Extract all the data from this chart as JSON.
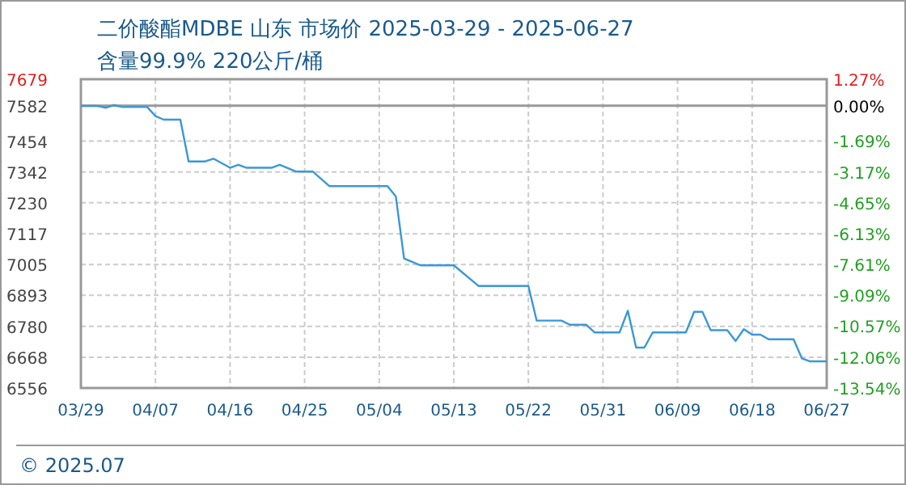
{
  "chart_data": {
    "type": "line",
    "title": "二价酸酯MDBE 山东 市场价 2025-03-29 - 2025-06-27",
    "subtitle": "含量99.9% 220公斤/桶",
    "annotations": [
      "© 2025.07"
    ],
    "x": [
      "2025-03-29",
      "2025-03-31",
      "2025-04-01",
      "2025-04-02",
      "2025-04-03",
      "2025-04-06",
      "2025-04-07",
      "2025-04-08",
      "2025-04-10",
      "2025-04-11",
      "2025-04-13",
      "2025-04-14",
      "2025-04-16",
      "2025-04-17",
      "2025-04-18",
      "2025-04-21",
      "2025-04-22",
      "2025-04-24",
      "2025-04-26",
      "2025-04-28",
      "2025-05-05",
      "2025-05-06",
      "2025-05-07",
      "2025-05-09",
      "2025-05-13",
      "2025-05-16",
      "2025-05-22",
      "2025-05-23",
      "2025-05-26",
      "2025-05-27",
      "2025-05-29",
      "2025-05-30",
      "2025-06-02",
      "2025-06-03",
      "2025-06-04",
      "2025-06-05",
      "2025-06-06",
      "2025-06-10",
      "2025-06-11",
      "2025-06-12",
      "2025-06-13",
      "2025-06-15",
      "2025-06-16",
      "2025-06-17",
      "2025-06-18",
      "2025-06-19",
      "2025-06-20",
      "2025-06-23",
      "2025-06-24",
      "2025-06-25",
      "2025-06-27"
    ],
    "series": [
      {
        "color": "#3a98d8",
        "values": [
          7582,
          7582,
          7575,
          7585,
          7578,
          7578,
          7545,
          7532,
          7532,
          7380,
          7380,
          7390,
          7357,
          7368,
          7357,
          7357,
          7368,
          7343,
          7343,
          7290,
          7290,
          7253,
          7027,
          7002,
          7002,
          6927,
          6927,
          6801,
          6801,
          6786,
          6786,
          6758,
          6758,
          6837,
          6703,
          6703,
          6758,
          6758,
          6833,
          6833,
          6766,
          6766,
          6727,
          6770,
          6750,
          6750,
          6733,
          6733,
          6664,
          6653,
          6653
        ]
      }
    ],
    "xlim": [
      "2025-03-29",
      "2025-06-27"
    ],
    "xticks": [
      {
        "value": "2025-03-29",
        "label": "03/29"
      },
      {
        "value": "2025-04-07",
        "label": "04/07"
      },
      {
        "value": "2025-04-16",
        "label": "04/16"
      },
      {
        "value": "2025-04-25",
        "label": "04/25"
      },
      {
        "value": "2025-05-04",
        "label": "05/04"
      },
      {
        "value": "2025-05-13",
        "label": "05/13"
      },
      {
        "value": "2025-05-22",
        "label": "05/22"
      },
      {
        "value": "2025-05-31",
        "label": "05/31"
      },
      {
        "value": "2025-06-09",
        "label": "06/09"
      },
      {
        "value": "2025-06-18",
        "label": "06/18"
      },
      {
        "value": "2025-06-27",
        "label": "06/27"
      }
    ],
    "ylim": [
      6556,
      7679
    ],
    "yticks": [
      6556,
      6668,
      6780,
      6893,
      7005,
      7117,
      7230,
      7342,
      7454,
      7582,
      7679
    ],
    "y2lim": [
      -13.54,
      1.27
    ],
    "y2ticks": [
      {
        "value": -13.54,
        "label": "-13.54%"
      },
      {
        "value": -12.06,
        "label": "-12.06%"
      },
      {
        "value": -10.57,
        "label": "-10.57%"
      },
      {
        "value": -9.09,
        "label": "-9.09%"
      },
      {
        "value": -7.61,
        "label": "-7.61%"
      },
      {
        "value": -6.13,
        "label": "-6.13%"
      },
      {
        "value": -4.65,
        "label": "-4.65%"
      },
      {
        "value": -3.17,
        "label": "-3.17%"
      },
      {
        "value": -1.69,
        "label": "-1.69%"
      },
      {
        "value": 0,
        "label": "0.00%"
      },
      {
        "value": 1.27,
        "label": "1.27%"
      }
    ],
    "ref_lines": [
      {
        "axis": "y2",
        "value": 0,
        "color": "#999999"
      }
    ],
    "grid": true,
    "marker": "none",
    "line_style": "solid"
  }
}
